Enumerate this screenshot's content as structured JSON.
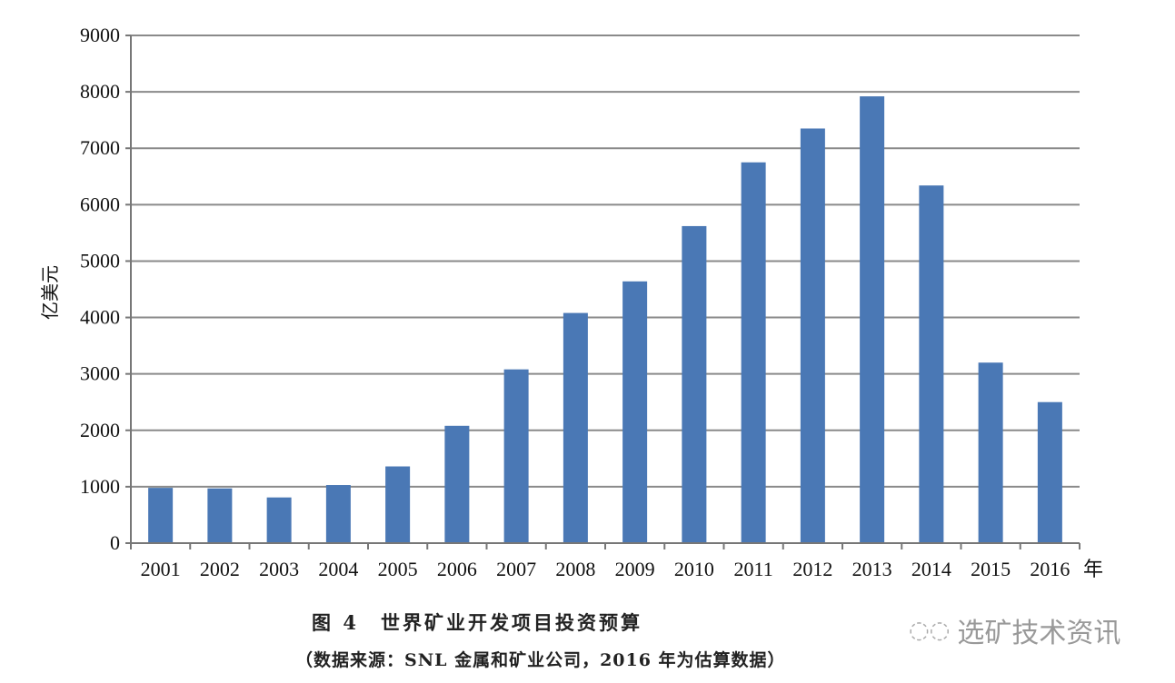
{
  "chart_data": {
    "type": "bar",
    "title": "图 4　世界矿业开发项目投资预算",
    "subtitle": "（数据来源：SNL 金属和矿业公司，2016 年为估算数据）",
    "xlabel": "年",
    "ylabel": "亿美元",
    "ylim": [
      0,
      9000
    ],
    "yticks": [
      0,
      1000,
      2000,
      3000,
      4000,
      5000,
      6000,
      7000,
      8000,
      9000
    ],
    "grid": true,
    "categories": [
      "2001",
      "2002",
      "2003",
      "2004",
      "2005",
      "2006",
      "2007",
      "2008",
      "2009",
      "2010",
      "2011",
      "2012",
      "2013",
      "2014",
      "2015",
      "2016"
    ],
    "values": [
      980,
      970,
      810,
      1030,
      1360,
      2080,
      3080,
      4080,
      4640,
      5620,
      6750,
      7350,
      7920,
      6340,
      3200,
      2500
    ],
    "bar_color": "#4a78b5"
  },
  "watermark": {
    "text": "选矿技术资讯",
    "icon": "wechat-icon"
  }
}
